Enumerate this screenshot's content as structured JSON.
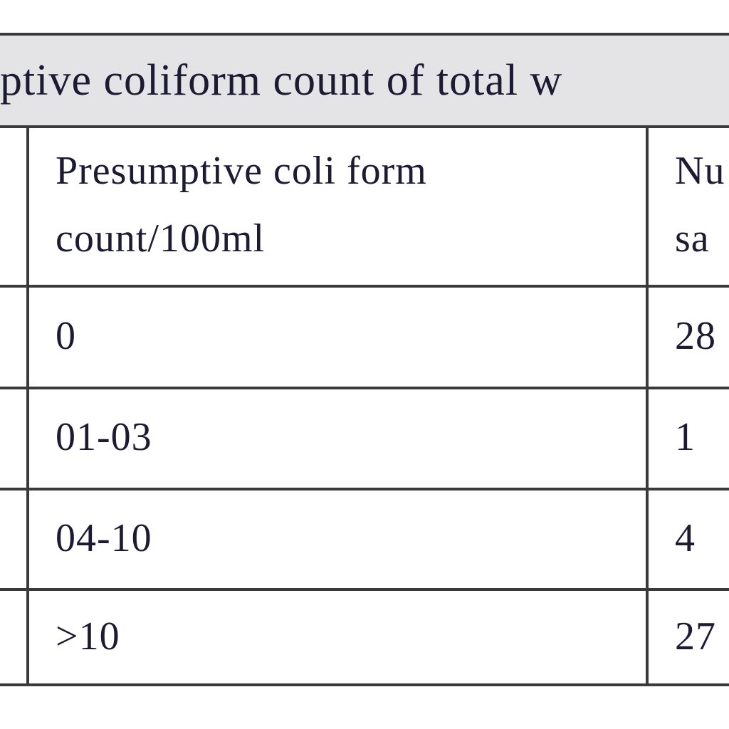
{
  "title": "ptive coliform count of total w",
  "table": {
    "header": [
      [
        "Presumptive coli form",
        "count/100ml"
      ],
      [
        "Nu",
        "sa"
      ]
    ],
    "rows": [
      [
        "0",
        "28"
      ],
      [
        "01-03",
        "1"
      ],
      [
        "04-10",
        "4"
      ],
      [
        ">10",
        "27"
      ]
    ]
  }
}
